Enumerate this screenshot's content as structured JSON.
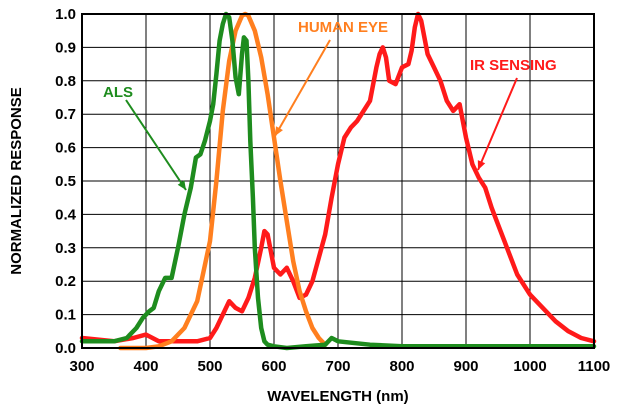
{
  "chart_data": {
    "type": "line",
    "xlabel": "WAVELENGTH (nm)",
    "ylabel": "NORMALIZED RESPONSE",
    "xlim": [
      300,
      1100
    ],
    "ylim": [
      0,
      1.0
    ],
    "x_ticks": [
      "300",
      "400",
      "500",
      "600",
      "700",
      "800",
      "900",
      "1000",
      "1100"
    ],
    "y_ticks": [
      "0.0",
      "0.1",
      "0.2",
      "0.3",
      "0.4",
      "0.5",
      "0.6",
      "0.7",
      "0.8",
      "0.9",
      "1.0"
    ],
    "grid": true,
    "legend": "inline labels",
    "series": [
      {
        "name": "ALS",
        "color": "#1e8c1e",
        "x": [
          300,
          330,
          350,
          370,
          385,
          395,
          405,
          412,
          420,
          430,
          440,
          450,
          460,
          470,
          478,
          485,
          492,
          500,
          505,
          510,
          515,
          520,
          525,
          530,
          535,
          540,
          545,
          550,
          553,
          557,
          560,
          563,
          567,
          570,
          575,
          580,
          585,
          590,
          600,
          620,
          650,
          680,
          690,
          700,
          750,
          800,
          900,
          1000,
          1100
        ],
        "y": [
          0.02,
          0.02,
          0.02,
          0.03,
          0.06,
          0.09,
          0.11,
          0.12,
          0.17,
          0.21,
          0.21,
          0.3,
          0.4,
          0.48,
          0.57,
          0.58,
          0.62,
          0.68,
          0.73,
          0.82,
          0.92,
          0.97,
          1.0,
          0.99,
          0.92,
          0.81,
          0.76,
          0.88,
          0.93,
          0.92,
          0.8,
          0.62,
          0.45,
          0.3,
          0.15,
          0.06,
          0.02,
          0.01,
          0.005,
          0.0,
          0.005,
          0.01,
          0.03,
          0.02,
          0.01,
          0.005,
          0.005,
          0.005,
          0.005
        ]
      },
      {
        "name": "HUMAN EYE",
        "color": "#ff7f1f",
        "x": [
          360,
          400,
          420,
          440,
          460,
          480,
          500,
          510,
          520,
          530,
          540,
          550,
          555,
          560,
          570,
          580,
          590,
          600,
          610,
          620,
          630,
          640,
          650,
          660,
          670,
          680
        ],
        "y": [
          0.0,
          0.0,
          0.005,
          0.02,
          0.06,
          0.14,
          0.32,
          0.5,
          0.71,
          0.86,
          0.95,
          0.995,
          1.0,
          0.995,
          0.95,
          0.87,
          0.76,
          0.63,
          0.5,
          0.38,
          0.26,
          0.17,
          0.11,
          0.06,
          0.03,
          0.01
        ]
      },
      {
        "name": "IR SENSING",
        "color": "#ff1a1a",
        "x": [
          300,
          350,
          380,
          400,
          420,
          450,
          480,
          500,
          510,
          520,
          530,
          540,
          550,
          560,
          570,
          580,
          585,
          590,
          600,
          610,
          620,
          630,
          640,
          650,
          660,
          670,
          680,
          690,
          700,
          710,
          720,
          730,
          740,
          750,
          760,
          765,
          770,
          775,
          780,
          790,
          800,
          810,
          815,
          820,
          825,
          830,
          835,
          840,
          850,
          860,
          870,
          880,
          890,
          900,
          910,
          920,
          930,
          940,
          950,
          960,
          970,
          980,
          1000,
          1020,
          1040,
          1060,
          1080,
          1100
        ],
        "y": [
          0.03,
          0.02,
          0.03,
          0.04,
          0.02,
          0.02,
          0.02,
          0.03,
          0.06,
          0.1,
          0.14,
          0.12,
          0.11,
          0.15,
          0.21,
          0.3,
          0.35,
          0.34,
          0.24,
          0.22,
          0.24,
          0.2,
          0.15,
          0.16,
          0.2,
          0.27,
          0.34,
          0.45,
          0.55,
          0.63,
          0.66,
          0.68,
          0.71,
          0.74,
          0.84,
          0.88,
          0.9,
          0.87,
          0.8,
          0.79,
          0.84,
          0.85,
          0.89,
          0.96,
          1.0,
          0.98,
          0.93,
          0.88,
          0.84,
          0.8,
          0.74,
          0.71,
          0.73,
          0.63,
          0.55,
          0.51,
          0.48,
          0.42,
          0.37,
          0.32,
          0.27,
          0.22,
          0.16,
          0.12,
          0.08,
          0.05,
          0.03,
          0.02
        ]
      }
    ]
  }
}
